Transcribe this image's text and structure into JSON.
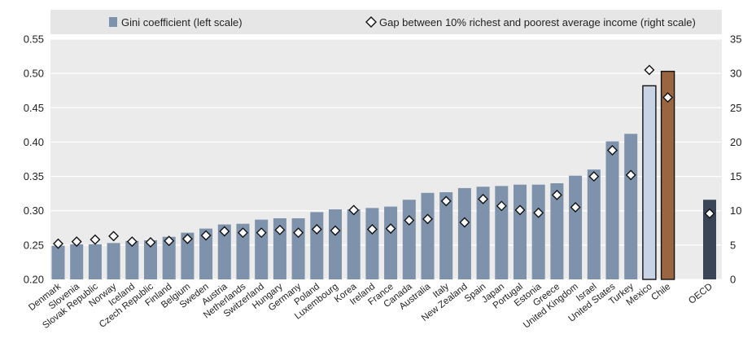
{
  "chart_data": {
    "type": "bar",
    "title": "",
    "xlabel": "",
    "ylabel": "",
    "ylim": [
      0.2,
      0.55
    ],
    "y2lim": [
      0,
      35
    ],
    "yticks": [
      "0.20",
      "0.25",
      "0.30",
      "0.35",
      "0.40",
      "0.45",
      "0.50",
      "0.55"
    ],
    "y2ticks": [
      "0",
      "5",
      "10",
      "15",
      "20",
      "25",
      "30",
      "35"
    ],
    "grid": "horizontal",
    "legend_position": "top",
    "categories": [
      "Denmark",
      "Slovenia",
      "Slovak Republic",
      "Norway",
      "Iceland",
      "Czech Republic",
      "Finland",
      "Belgium",
      "Sweden",
      "Austria",
      "Netherlands",
      "Switzerland",
      "Hungary",
      "Germany",
      "Poland",
      "Luxembourg",
      "Korea",
      "Ireland",
      "France",
      "Canada",
      "Australia",
      "Italy",
      "New Zealand",
      "Spain",
      "Japan",
      "Portugal",
      "Estonia",
      "Greece",
      "United Kingdom",
      "Israel",
      "United States",
      "Turkey",
      "Mexico",
      "Chile",
      "OECD"
    ],
    "series": [
      {
        "name": "Gini coefficient (left scale)",
        "axis": "left",
        "type": "bar",
        "values": [
          0.249,
          0.251,
          0.251,
          0.253,
          0.256,
          0.257,
          0.262,
          0.268,
          0.274,
          0.28,
          0.281,
          0.287,
          0.289,
          0.289,
          0.298,
          0.302,
          0.302,
          0.304,
          0.306,
          0.316,
          0.326,
          0.327,
          0.333,
          0.335,
          0.336,
          0.338,
          0.338,
          0.34,
          0.351,
          0.36,
          0.401,
          0.412,
          0.482,
          0.503,
          0.316
        ]
      },
      {
        "name": "Gap between 10% richest and poorest average income (right scale)",
        "axis": "right",
        "type": "scatter",
        "values": [
          5.2,
          5.5,
          5.8,
          6.3,
          5.5,
          5.4,
          5.6,
          5.9,
          6.4,
          7.0,
          6.8,
          6.8,
          7.2,
          6.8,
          7.3,
          7.1,
          10.1,
          7.3,
          7.4,
          8.6,
          8.8,
          11.4,
          8.3,
          11.7,
          10.7,
          10.1,
          9.7,
          12.3,
          10.5,
          15.0,
          18.8,
          15.2,
          30.5,
          26.5,
          9.6
        ]
      }
    ],
    "colors": {
      "bar": "#7e92ab",
      "bar_mexico": "#c8d4e5",
      "bar_chile": "#9a6541",
      "bar_oecd": "#3a4658",
      "legend_bg": "#e6e6e6",
      "grid": "#ffffff",
      "plot_bg": "#ebebeb"
    },
    "highlight": {
      "Mexico": "bar_mexico",
      "Chile": "bar_chile",
      "OECD": "bar_oecd"
    }
  }
}
